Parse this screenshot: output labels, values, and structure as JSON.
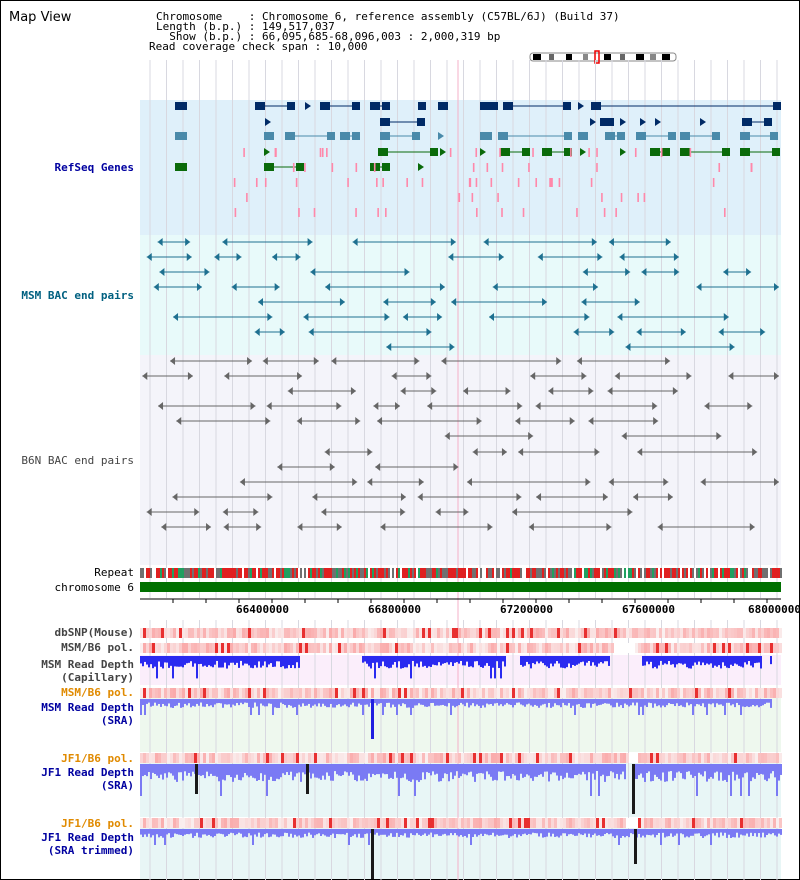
{
  "title": "Map View",
  "info": {
    "line1": "Chromosome    : Chromosome 6, reference assembly (C57BL/6J) (Build 37)",
    "line2": "Length (b.p.) : 149,517,037",
    "line3": "  Show (b.p.) : 66,095,685-68,096,003 : 2,000,319 bp",
    "line4": "Read coverage check span : 10,000"
  },
  "tracks": {
    "refseq": "RefSeq Genes",
    "msm_bac": "MSM BAC end pairs",
    "b6n_bac": "B6N BAC end pairs",
    "repeat": "Repeat",
    "chromosome": "chromosome 6",
    "dbsnp": "dbSNP(Mouse)",
    "msm_b6_pol_1": "MSM/B6 pol.",
    "msm_read_depth_cap": "MSM Read Depth\n(Capillary)",
    "msm_b6_pol_2": "MSM/B6 pol.",
    "msm_read_depth_sra": "MSM Read Depth\n(SRA)",
    "jf1_b6_pol_1": "JF1/B6 pol.",
    "jf1_read_depth_sra": "JF1 Read Depth\n(SRA)",
    "jf1_b6_pol_2": "JF1/B6 pol.",
    "jf1_read_depth_trim": "JF1 Read Depth\n(SRA trimmed)"
  },
  "axis": {
    "ticks": [
      "66400000",
      "66800000",
      "67200000",
      "67600000",
      "68000000"
    ]
  },
  "colors": {
    "refseq_bg": "#dff0fa",
    "msm_bg": "#e8fafa",
    "b6n_bg": "#f4f4fa",
    "refseq_label": "#0000a0",
    "msm_label": "#006080",
    "b6n_label": "#444444",
    "gene_navy": "#002a66",
    "gene_blue": "#4a8aaa",
    "gene_green": "#0a6a0a",
    "gene_pink": "#ff88aa",
    "depth_blue": "#2a2af0",
    "depth_light": "#7a7af4",
    "orange_label": "#e08a00"
  }
}
